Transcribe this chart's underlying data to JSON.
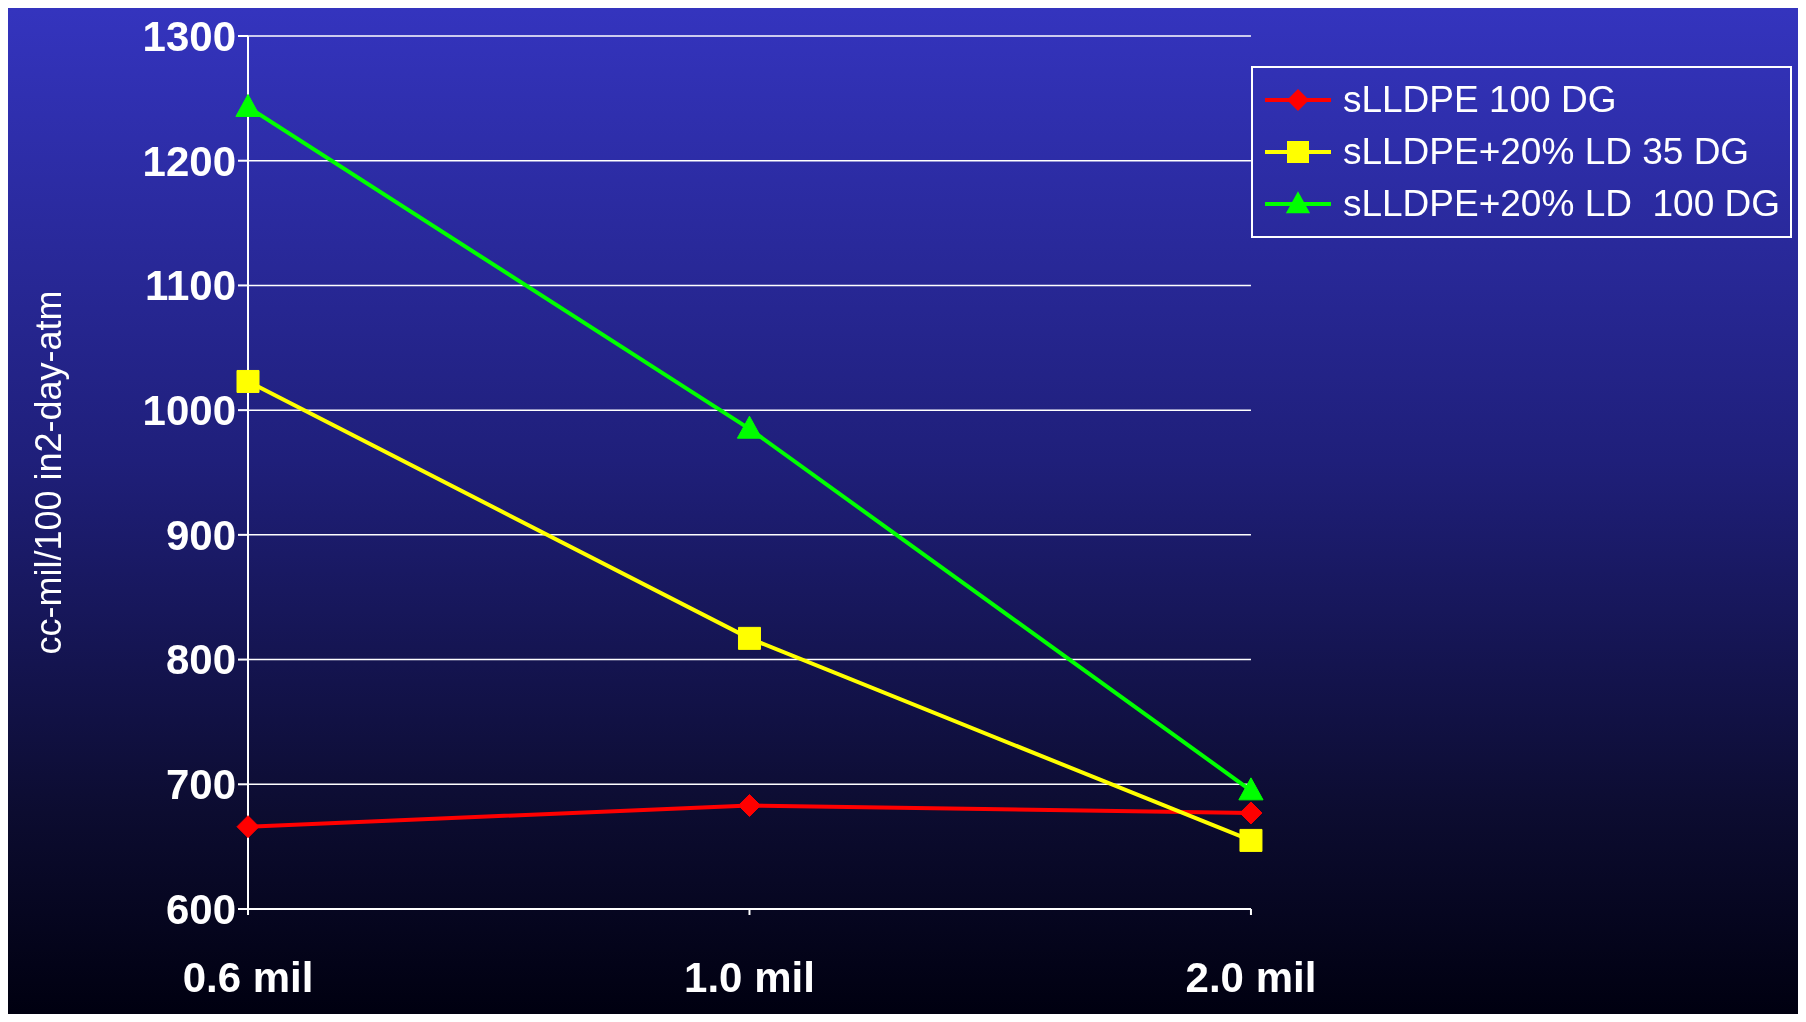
{
  "chart_data": {
    "type": "line",
    "ylabel": "cc-mil/100 in2-day-atm",
    "categories": [
      "0.6 mil",
      "1.0 mil",
      "2.0 mil"
    ],
    "series": [
      {
        "name": "sLLDPE 100 DG",
        "color": "#ff0000",
        "marker": "diamond",
        "values": [
          666,
          683,
          677
        ]
      },
      {
        "name": "sLLDPE+20% LD 35 DG",
        "color": "#ffff00",
        "marker": "square",
        "values": [
          1023,
          817,
          655
        ]
      },
      {
        "name": "sLLDPE+20% LD  100 DG",
        "color": "#00ff00",
        "marker": "triangle",
        "values": [
          1243,
          985,
          695
        ]
      }
    ],
    "ylim": [
      600,
      1300
    ],
    "yticks": [
      600,
      700,
      800,
      900,
      1000,
      1100,
      1200,
      1300
    ],
    "grid": "y",
    "legend": "top right",
    "line_style": "solid"
  }
}
